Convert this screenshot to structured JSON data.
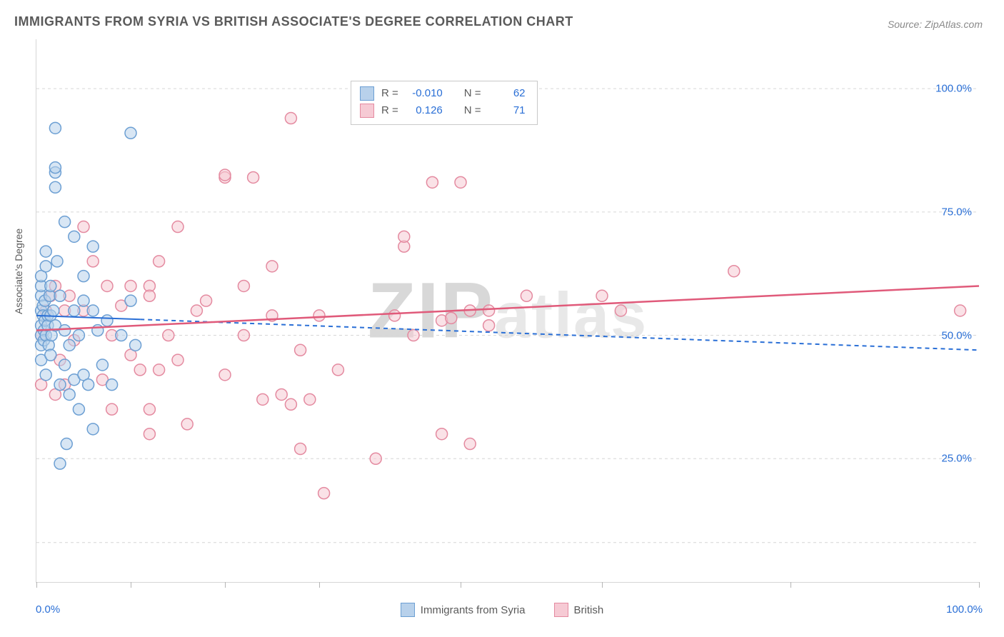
{
  "title": "IMMIGRANTS FROM SYRIA VS BRITISH ASSOCIATE'S DEGREE CORRELATION CHART",
  "source": "Source: ZipAtlas.com",
  "watermark_text_a": "ZIP",
  "watermark_text_b": "atlas",
  "chart": {
    "type": "scatter",
    "x_label": "",
    "y_label": "Associate's Degree",
    "xlim": [
      0,
      100
    ],
    "ylim": [
      0,
      110
    ],
    "x_ticks_major": [
      0,
      10,
      20,
      30,
      45,
      60,
      80,
      100
    ],
    "x_tick_labels": {
      "0": "0.0%",
      "100": "100.0%"
    },
    "y_gridlines": [
      8,
      25,
      50,
      75,
      100
    ],
    "y_tick_labels": {
      "25": "25.0%",
      "50": "50.0%",
      "75": "75.0%",
      "100": "100.0%"
    },
    "background_color": "#ffffff",
    "grid_color": "#d6d6d6",
    "grid_dash": "4 4",
    "marker_radius": 8,
    "marker_stroke_width": 1.5,
    "series": [
      {
        "name": "Immigrants from Syria",
        "key": "syria",
        "color_stroke": "#6c9fd3",
        "color_fill": "#b8d1eb",
        "fill_opacity": 0.55,
        "R": "-0.010",
        "N": "62",
        "trend": {
          "x1": 0,
          "y1": 54,
          "x2": 100,
          "y2": 47,
          "solid_until_x": 11,
          "color": "#2a6fd6",
          "width": 2,
          "dash": "6 5"
        },
        "points": [
          [
            0.5,
            50
          ],
          [
            0.5,
            52
          ],
          [
            0.5,
            48
          ],
          [
            0.5,
            55
          ],
          [
            0.5,
            58
          ],
          [
            0.5,
            60
          ],
          [
            0.5,
            62
          ],
          [
            0.5,
            45
          ],
          [
            0.7,
            56
          ],
          [
            0.7,
            54
          ],
          [
            0.8,
            51
          ],
          [
            0.8,
            49
          ],
          [
            0.9,
            53
          ],
          [
            0.9,
            57
          ],
          [
            1.0,
            50
          ],
          [
            1.0,
            64
          ],
          [
            1.0,
            67
          ],
          [
            1.0,
            42
          ],
          [
            1.2,
            54
          ],
          [
            1.2,
            52
          ],
          [
            1.3,
            48
          ],
          [
            1.4,
            58
          ],
          [
            1.5,
            60
          ],
          [
            1.5,
            46
          ],
          [
            1.5,
            54
          ],
          [
            1.6,
            50
          ],
          [
            1.8,
            55
          ],
          [
            2.0,
            52
          ],
          [
            2.0,
            80
          ],
          [
            2.0,
            83
          ],
          [
            2.0,
            84
          ],
          [
            2.0,
            92
          ],
          [
            2.2,
            65
          ],
          [
            2.5,
            58
          ],
          [
            2.5,
            40
          ],
          [
            2.5,
            24
          ],
          [
            3.0,
            51
          ],
          [
            3.0,
            44
          ],
          [
            3.0,
            73
          ],
          [
            3.2,
            28
          ],
          [
            3.5,
            38
          ],
          [
            3.5,
            48
          ],
          [
            4.0,
            41
          ],
          [
            4.0,
            70
          ],
          [
            4.0,
            55
          ],
          [
            4.5,
            50
          ],
          [
            4.5,
            35
          ],
          [
            5.0,
            57
          ],
          [
            5.0,
            62
          ],
          [
            5.0,
            42
          ],
          [
            5.5,
            40
          ],
          [
            6.0,
            31
          ],
          [
            6.0,
            55
          ],
          [
            6.0,
            68
          ],
          [
            6.5,
            51
          ],
          [
            7.0,
            44
          ],
          [
            7.5,
            53
          ],
          [
            8.0,
            40
          ],
          [
            9.0,
            50
          ],
          [
            10.0,
            91
          ],
          [
            10.0,
            57
          ],
          [
            10.5,
            48
          ]
        ]
      },
      {
        "name": "British",
        "key": "british",
        "color_stroke": "#e48aa0",
        "color_fill": "#f6cad4",
        "fill_opacity": 0.55,
        "R": "0.126",
        "N": "71",
        "trend": {
          "x1": 0,
          "y1": 51,
          "x2": 100,
          "y2": 60,
          "solid_until_x": 100,
          "color": "#e05a7a",
          "width": 2.5,
          "dash": null
        },
        "points": [
          [
            0.5,
            40
          ],
          [
            0.5,
            50
          ],
          [
            1.0,
            55
          ],
          [
            1.5,
            58
          ],
          [
            2.0,
            38
          ],
          [
            2.0,
            60
          ],
          [
            2.5,
            45
          ],
          [
            3.0,
            40
          ],
          [
            3.0,
            55
          ],
          [
            3.5,
            58
          ],
          [
            4.0,
            49
          ],
          [
            5.0,
            72
          ],
          [
            5.0,
            55
          ],
          [
            6.0,
            65
          ],
          [
            7.0,
            41
          ],
          [
            7.5,
            60
          ],
          [
            8.0,
            50
          ],
          [
            8.0,
            35
          ],
          [
            9.0,
            56
          ],
          [
            10.0,
            60
          ],
          [
            10.0,
            46
          ],
          [
            11.0,
            43
          ],
          [
            12.0,
            60
          ],
          [
            12.0,
            35
          ],
          [
            12.0,
            30
          ],
          [
            13.0,
            65
          ],
          [
            13.0,
            43
          ],
          [
            14.0,
            50
          ],
          [
            15.0,
            72
          ],
          [
            15.0,
            45
          ],
          [
            16.0,
            32
          ],
          [
            17.0,
            55
          ],
          [
            18.0,
            57
          ],
          [
            20.0,
            82
          ],
          [
            20.0,
            82.5
          ],
          [
            20.0,
            42
          ],
          [
            22.0,
            50
          ],
          [
            22.0,
            60
          ],
          [
            23.0,
            82
          ],
          [
            24.0,
            37
          ],
          [
            25.0,
            54
          ],
          [
            25.0,
            64
          ],
          [
            26.0,
            38
          ],
          [
            27.0,
            36
          ],
          [
            27.0,
            94
          ],
          [
            28.0,
            47
          ],
          [
            28.0,
            27
          ],
          [
            29.0,
            37
          ],
          [
            30.0,
            54
          ],
          [
            30.5,
            18
          ],
          [
            32.0,
            43
          ],
          [
            36.0,
            25
          ],
          [
            38.0,
            54
          ],
          [
            39.0,
            68
          ],
          [
            39.0,
            70
          ],
          [
            40.0,
            50
          ],
          [
            42.0,
            81
          ],
          [
            43.0,
            53
          ],
          [
            43.0,
            30
          ],
          [
            44.0,
            53.5
          ],
          [
            45.0,
            81
          ],
          [
            46.0,
            55
          ],
          [
            46.0,
            28
          ],
          [
            48.0,
            52
          ],
          [
            48.0,
            55
          ],
          [
            52.0,
            58
          ],
          [
            60.0,
            58
          ],
          [
            62.0,
            55
          ],
          [
            74.0,
            63
          ],
          [
            98.0,
            55
          ],
          [
            12.0,
            58
          ]
        ]
      }
    ]
  },
  "corr_legend": {
    "r_label": "R =",
    "n_label": "N ="
  },
  "bottom_legend": {
    "items": [
      {
        "key": "syria",
        "label": "Immigrants from Syria"
      },
      {
        "key": "british",
        "label": "British"
      }
    ]
  }
}
